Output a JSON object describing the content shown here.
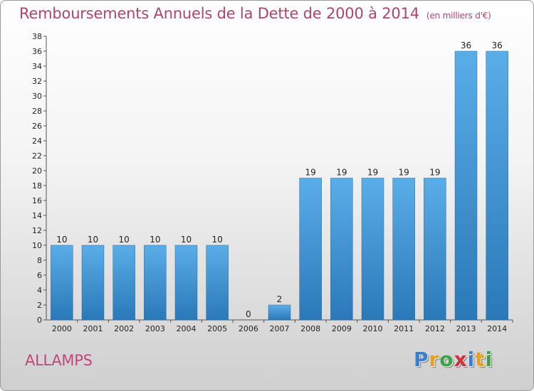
{
  "header": {
    "title": "Remboursements Annuels de la Dette de 2000 à 2014",
    "unit": "(en milliers d'€)"
  },
  "footer": {
    "city": "ALLAMPS",
    "logo": [
      "P",
      "r",
      "o",
      "x",
      "i",
      "t",
      "i"
    ],
    "logo_colors": [
      "#3a7fd0",
      "#e8a020",
      "#3aa548",
      "#d0303a",
      "#3a7fd0",
      "#e8a020",
      "#3aa548"
    ]
  },
  "chart_data": {
    "type": "bar",
    "title": "Remboursements Annuels de la Dette de 2000 à 2014",
    "categories": [
      "2000",
      "2001",
      "2002",
      "2003",
      "2004",
      "2005",
      "2006",
      "2007",
      "2008",
      "2009",
      "2010",
      "2011",
      "2012",
      "2013",
      "2014"
    ],
    "values": [
      10,
      10,
      10,
      10,
      10,
      10,
      0,
      2,
      19,
      19,
      19,
      19,
      19,
      36,
      36
    ],
    "data_labels": [
      "10",
      "10",
      "10",
      "10",
      "10",
      "10",
      "0",
      "2",
      "19",
      "19",
      "19",
      "19",
      "19",
      "36",
      "36"
    ],
    "ylim": [
      0,
      38
    ],
    "yticks": [
      0,
      2,
      4,
      6,
      8,
      10,
      12,
      14,
      16,
      18,
      20,
      22,
      24,
      26,
      28,
      30,
      32,
      34,
      36,
      38
    ],
    "grid": false,
    "bar_color_light": "#5aaee8",
    "bar_color_dark": "#2a78b8"
  }
}
